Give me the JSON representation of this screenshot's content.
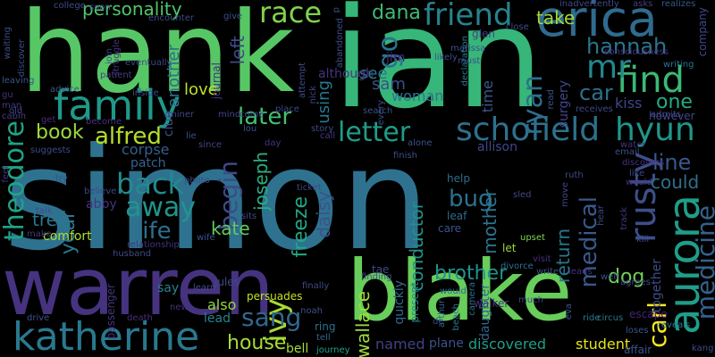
{
  "words": [
    "simon",
    "ian",
    "hank",
    "warren",
    "blake",
    "katherine",
    "erica",
    "aurora",
    "schofield",
    "hyun",
    "family",
    "theodore",
    "rusty",
    "medicine",
    "find",
    "letter",
    "friend",
    "mr",
    "back",
    "begin",
    "personality",
    "race",
    "dana",
    "ivy",
    "book",
    "alfred",
    "away",
    "hannah",
    "sang",
    "year",
    "later",
    "go",
    "life",
    "line",
    "could",
    "bug",
    "medical",
    "car",
    "carl",
    "ryan",
    "one",
    "joseph",
    "kate",
    "freeze",
    "conductor",
    "daisy",
    "dog",
    "house",
    "brother",
    "return",
    "tree",
    "mother",
    "wallace",
    "comfort",
    "discovered",
    "student",
    "named",
    "together",
    "take",
    "woman",
    "love",
    "left",
    "using",
    "sam",
    "see",
    "jim",
    "glen",
    "time",
    "kiss",
    "however",
    "another",
    "clue",
    "corpse",
    "patch",
    "abby",
    "say",
    "also",
    "lead",
    "journal",
    "although",
    "would",
    "present",
    "quickly",
    "daughter",
    "allison",
    "help",
    "care",
    "leaf",
    "let",
    "surgery",
    "escape",
    "bell",
    "ring",
    "tell",
    "journey",
    "plane",
    "camera",
    "upset",
    "divorce",
    "finding",
    "tae",
    "jules",
    "persuades",
    "noah",
    "walker",
    "beach",
    "arthur",
    "circus",
    "ride",
    "death",
    "husband",
    "passenger",
    "new",
    "drive",
    "affair",
    "kang",
    "loses",
    "reveals",
    "agrees",
    "well",
    "company",
    "writing",
    "consciousness",
    "realizes",
    "asks",
    "inadvertently",
    "close",
    "must",
    "marissa",
    "likely",
    "declaration",
    "abandoned",
    "encounter",
    "give",
    "college",
    "waiting",
    "discover",
    "leaving",
    "patient",
    "struggle",
    "join",
    "eventually",
    "soon",
    "gu",
    "man",
    "cabin",
    "old",
    "advice",
    "get",
    "become",
    "inside",
    "miner",
    "lie",
    "since",
    "come",
    "mind",
    "lou",
    "day",
    "story",
    "place",
    "search",
    "every",
    "nick",
    "attempt",
    "call",
    "finish",
    "alone",
    "ruth",
    "email",
    "water",
    "admits",
    "receives",
    "read",
    "discovers",
    "like",
    "move",
    "track",
    "write",
    "visit",
    "sits",
    "ticket",
    "wife",
    "relationship",
    "learn",
    "photo",
    "believe",
    "try",
    "feel",
    "suggests",
    "talk",
    "make",
    "sled",
    "p",
    "de",
    "hear",
    "leads",
    "kill",
    "eva",
    "finally",
    "much",
    "would",
    "seo"
  ]
}
